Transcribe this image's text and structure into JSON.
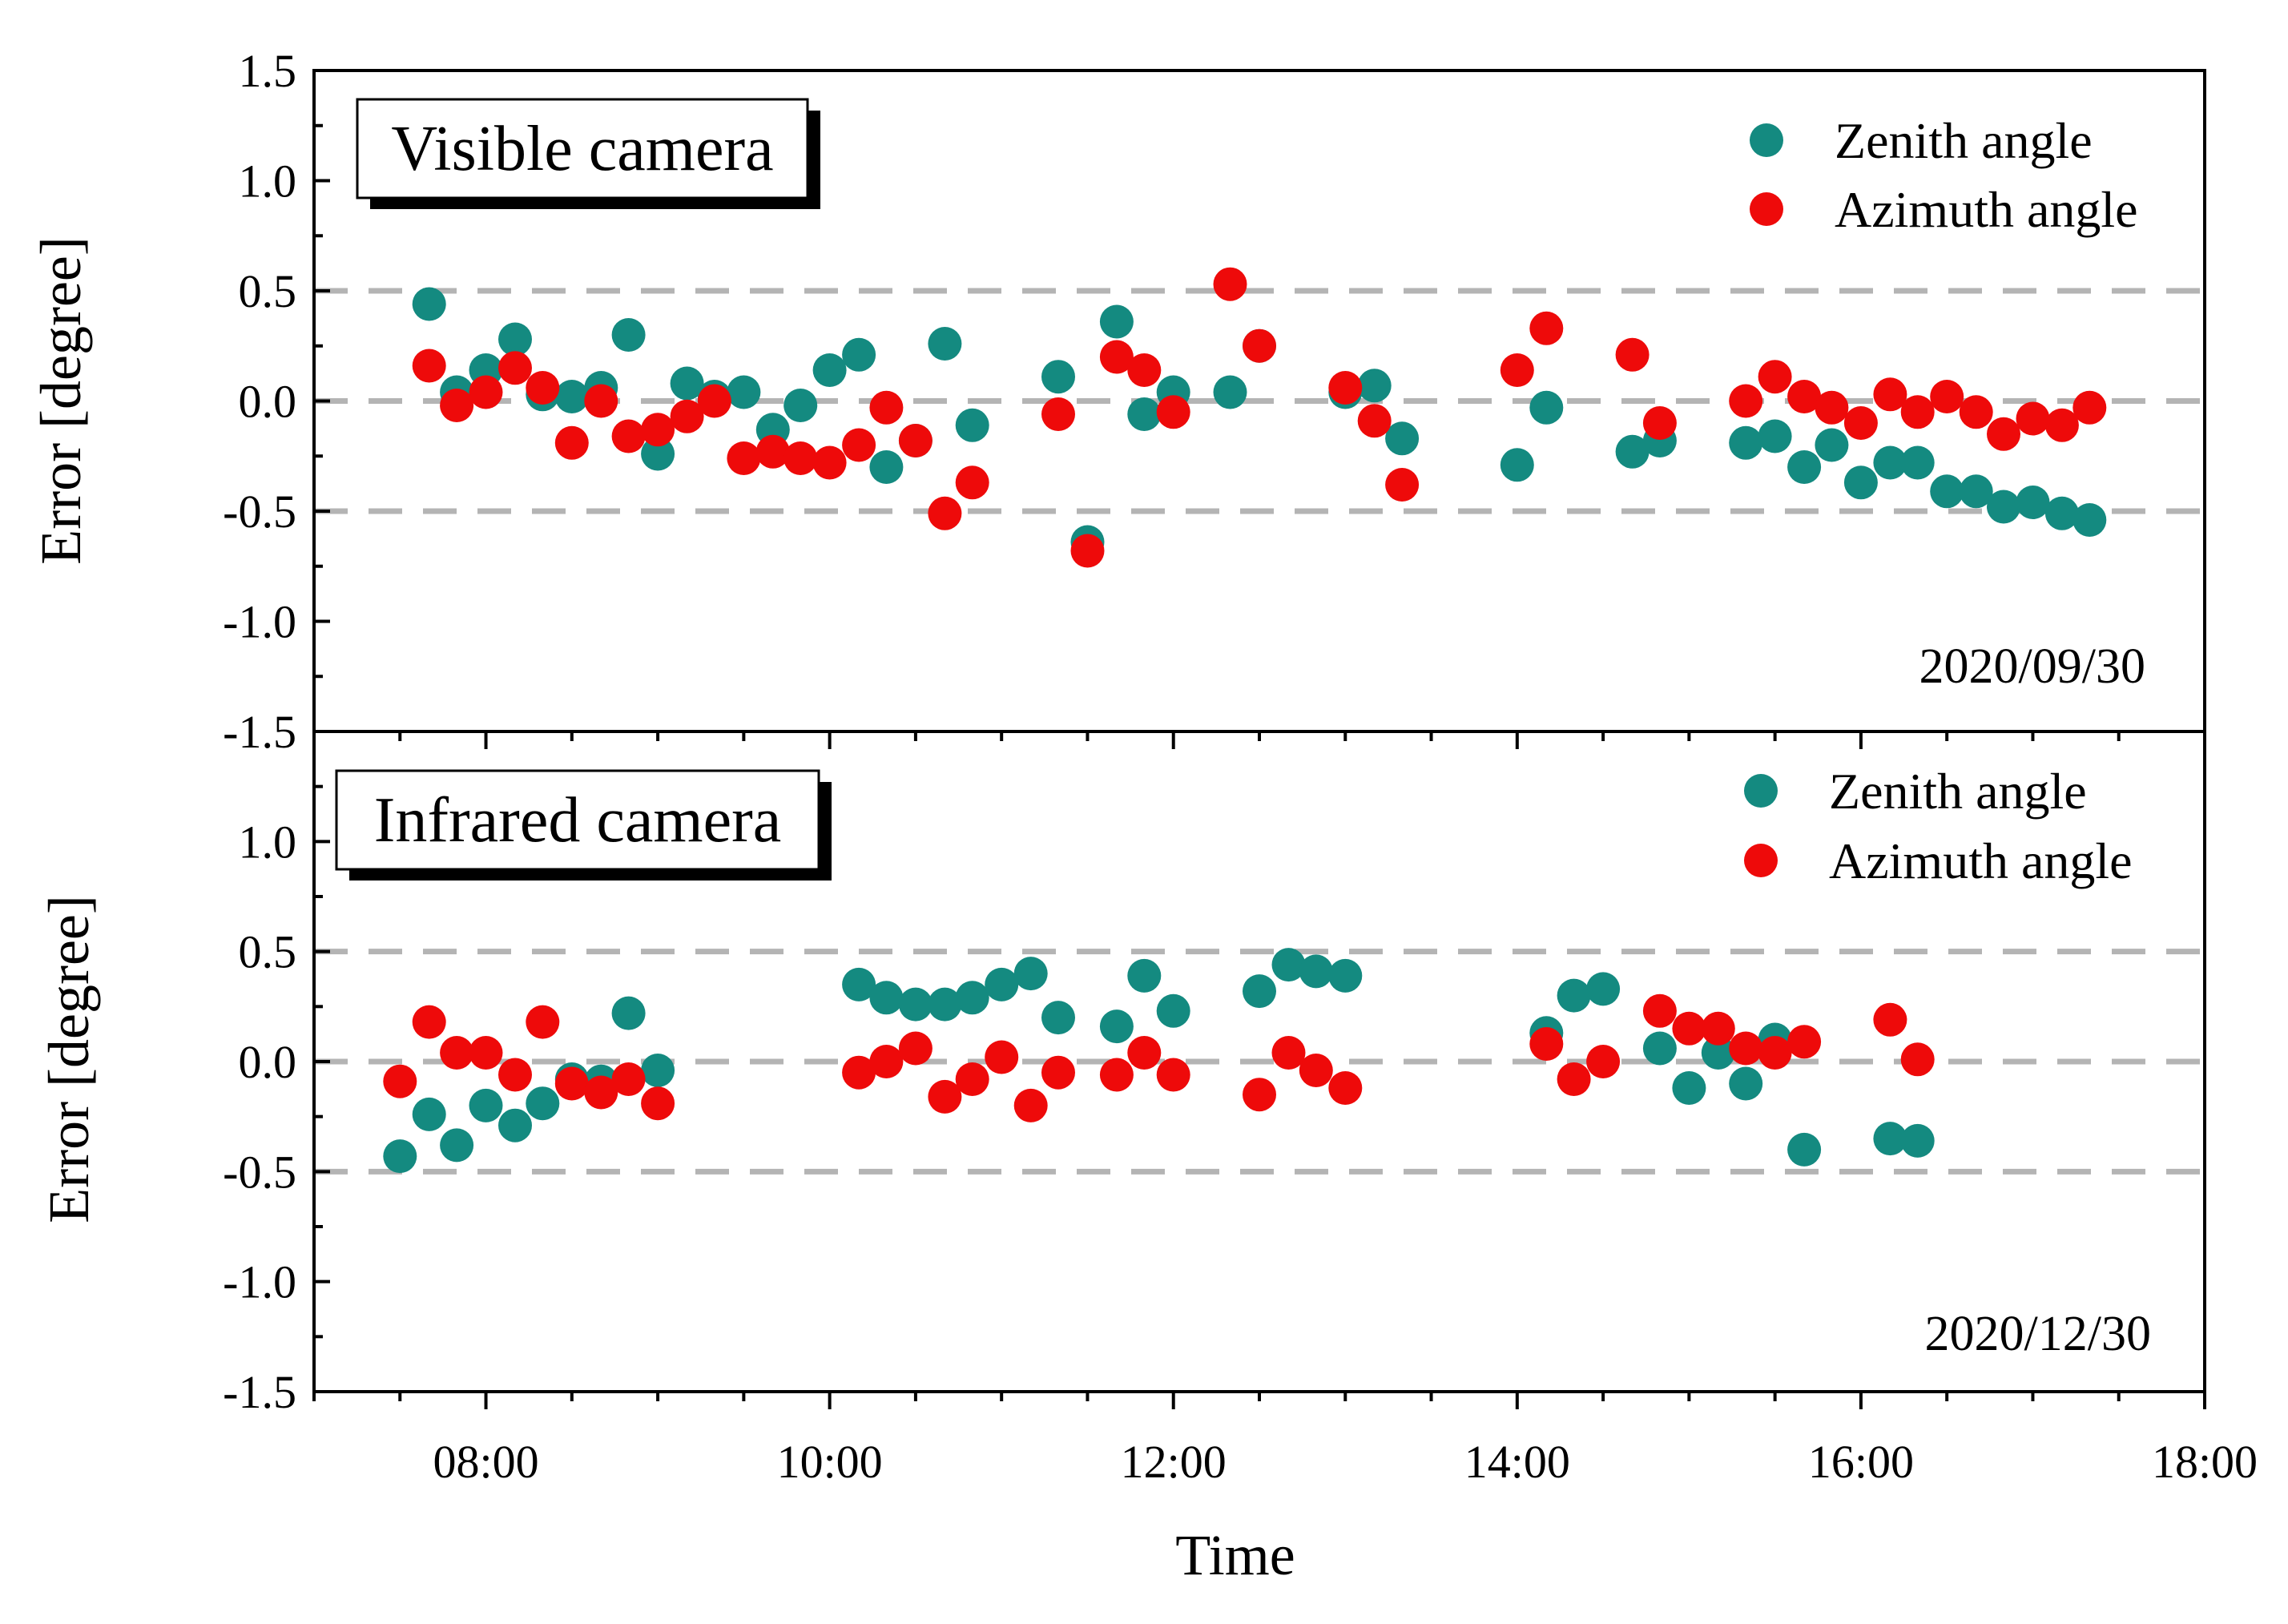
{
  "figure": {
    "x_axis_title": "Time",
    "x_tick_labels": [
      "08:00",
      "10:00",
      "12:00",
      "14:00",
      "16:00",
      "18:00"
    ],
    "colors": {
      "zenith": "#148a80",
      "azimuth": "#ee0a0a",
      "reference_lines": "#b4b4b4"
    }
  },
  "chart_data": [
    {
      "type": "scatter",
      "title": "Visible camera",
      "date": "2020/09/30",
      "xlabel": "Time",
      "ylabel": "Error [degree]",
      "x_unit": "hours",
      "xlim": [
        7,
        18
      ],
      "ylim": [
        -1.5,
        1.5
      ],
      "y_ticks": [
        1.5,
        1.0,
        0.5,
        0.0,
        -0.5,
        -1.0,
        -1.5
      ],
      "y_tick_labels": [
        "1.5",
        "1.0",
        "0.5",
        "0.0",
        "-0.5",
        "-1.0",
        "-1.5"
      ],
      "reference_lines": [
        0.5,
        0.0,
        -0.5
      ],
      "legend": {
        "position": "top-right",
        "entries": [
          "Zenith angle",
          "Azimuth angle"
        ]
      },
      "series": [
        {
          "name": "Zenith angle",
          "x": [
            7.67,
            7.83,
            8.0,
            8.17,
            8.33,
            8.5,
            8.67,
            8.83,
            9.0,
            9.17,
            9.33,
            9.5,
            9.67,
            9.83,
            10.0,
            10.17,
            10.33,
            10.5,
            10.67,
            10.83,
            11.33,
            11.5,
            11.67,
            11.83,
            12.0,
            12.33,
            12.5,
            13.0,
            13.17,
            13.33,
            14.0,
            14.17,
            14.67,
            14.83,
            15.33,
            15.5,
            15.67,
            15.83,
            16.0,
            16.17,
            16.33,
            16.5,
            16.67,
            16.83,
            17.0,
            17.17,
            17.33
          ],
          "values": [
            0.44,
            0.04,
            0.14,
            0.28,
            0.03,
            0.02,
            0.06,
            0.3,
            -0.24,
            0.08,
            0.02,
            0.04,
            -0.13,
            -0.02,
            0.14,
            0.21,
            -0.3,
            -0.18,
            0.26,
            -0.11,
            0.11,
            -0.64,
            0.36,
            -0.06,
            0.04,
            0.04,
            0.25,
            0.04,
            0.07,
            -0.17,
            -0.29,
            -0.03,
            -0.23,
            -0.18,
            -0.19,
            -0.16,
            -0.3,
            -0.2,
            -0.37,
            -0.28,
            -0.28,
            -0.41,
            -0.41,
            -0.48,
            -0.46,
            -0.51,
            -0.54
          ]
        },
        {
          "name": "Azimuth angle",
          "x": [
            7.67,
            7.83,
            8.0,
            8.17,
            8.33,
            8.5,
            8.67,
            8.83,
            9.0,
            9.17,
            9.33,
            9.5,
            9.67,
            9.83,
            10.0,
            10.17,
            10.33,
            10.5,
            10.67,
            10.83,
            11.33,
            11.5,
            11.67,
            11.83,
            12.0,
            12.33,
            12.5,
            13.0,
            13.17,
            13.33,
            14.0,
            14.17,
            14.67,
            14.83,
            15.33,
            15.5,
            15.67,
            15.83,
            16.0,
            16.17,
            16.33,
            16.5,
            16.67,
            16.83,
            17.0,
            17.17,
            17.33
          ],
          "values": [
            0.16,
            -0.02,
            0.04,
            0.15,
            0.06,
            -0.19,
            0.0,
            -0.16,
            -0.13,
            -0.07,
            0.0,
            -0.26,
            -0.23,
            -0.26,
            -0.28,
            -0.2,
            -0.03,
            -0.18,
            -0.51,
            -0.37,
            -0.06,
            -0.68,
            0.2,
            0.14,
            -0.05,
            0.53,
            0.25,
            0.06,
            -0.09,
            -0.38,
            0.14,
            0.33,
            0.21,
            -0.1,
            0.0,
            0.11,
            0.02,
            -0.03,
            -0.1,
            0.03,
            -0.05,
            0.02,
            -0.05,
            -0.15,
            -0.08,
            -0.11,
            -0.03
          ]
        }
      ]
    },
    {
      "type": "scatter",
      "title": "Infrared camera",
      "date": "2020/12/30",
      "xlabel": "Time",
      "ylabel": "Error [degree]",
      "x_unit": "hours",
      "xlim": [
        7,
        18
      ],
      "ylim": [
        -1.5,
        1.5
      ],
      "y_ticks": [
        1.0,
        0.5,
        0.0,
        -0.5,
        -1.0,
        -1.5
      ],
      "y_tick_labels": [
        "1.0",
        "0.5",
        "0.0",
        "-0.5",
        "-1.0",
        "-1.5"
      ],
      "reference_lines": [
        0.5,
        0.0,
        -0.5
      ],
      "legend": {
        "position": "top-right",
        "entries": [
          "Zenith angle",
          "Azimuth angle"
        ]
      },
      "series": [
        {
          "name": "Zenith angle",
          "x": [
            7.5,
            7.67,
            7.83,
            8.0,
            8.17,
            8.33,
            8.5,
            8.67,
            8.83,
            9.0,
            10.17,
            10.33,
            10.5,
            10.67,
            10.83,
            11.0,
            11.17,
            11.33,
            11.67,
            11.83,
            12.0,
            12.5,
            12.67,
            12.83,
            13.0,
            14.17,
            14.33,
            14.5,
            14.83,
            15.0,
            15.17,
            15.33,
            15.5,
            15.67,
            16.17,
            16.33
          ],
          "values": [
            -0.43,
            -0.24,
            -0.38,
            -0.2,
            -0.29,
            -0.19,
            -0.08,
            -0.09,
            0.22,
            -0.04,
            0.35,
            0.29,
            0.26,
            0.26,
            0.29,
            0.35,
            0.4,
            0.2,
            0.16,
            0.39,
            0.23,
            0.32,
            0.44,
            0.41,
            0.39,
            0.13,
            0.3,
            0.33,
            0.06,
            -0.12,
            0.04,
            -0.1,
            0.1,
            -0.4,
            -0.35,
            -0.36
          ]
        },
        {
          "name": "Azimuth angle",
          "x": [
            7.5,
            7.67,
            7.83,
            8.0,
            8.17,
            8.33,
            8.5,
            8.67,
            8.83,
            9.0,
            10.17,
            10.33,
            10.5,
            10.67,
            10.83,
            11.0,
            11.17,
            11.33,
            11.67,
            11.83,
            12.0,
            12.5,
            12.67,
            12.83,
            13.0,
            14.17,
            14.33,
            14.5,
            14.83,
            15.0,
            15.17,
            15.33,
            15.5,
            15.67,
            16.17,
            16.33
          ],
          "values": [
            -0.09,
            0.18,
            0.04,
            0.04,
            -0.06,
            0.18,
            -0.1,
            -0.14,
            -0.08,
            -0.19,
            -0.05,
            0.0,
            0.06,
            -0.16,
            -0.08,
            0.02,
            -0.2,
            -0.05,
            -0.06,
            0.04,
            -0.06,
            -0.15,
            0.04,
            -0.04,
            -0.12,
            0.08,
            -0.08,
            0.0,
            0.23,
            0.15,
            0.15,
            0.06,
            0.04,
            0.09,
            0.19,
            0.01
          ]
        }
      ]
    }
  ]
}
